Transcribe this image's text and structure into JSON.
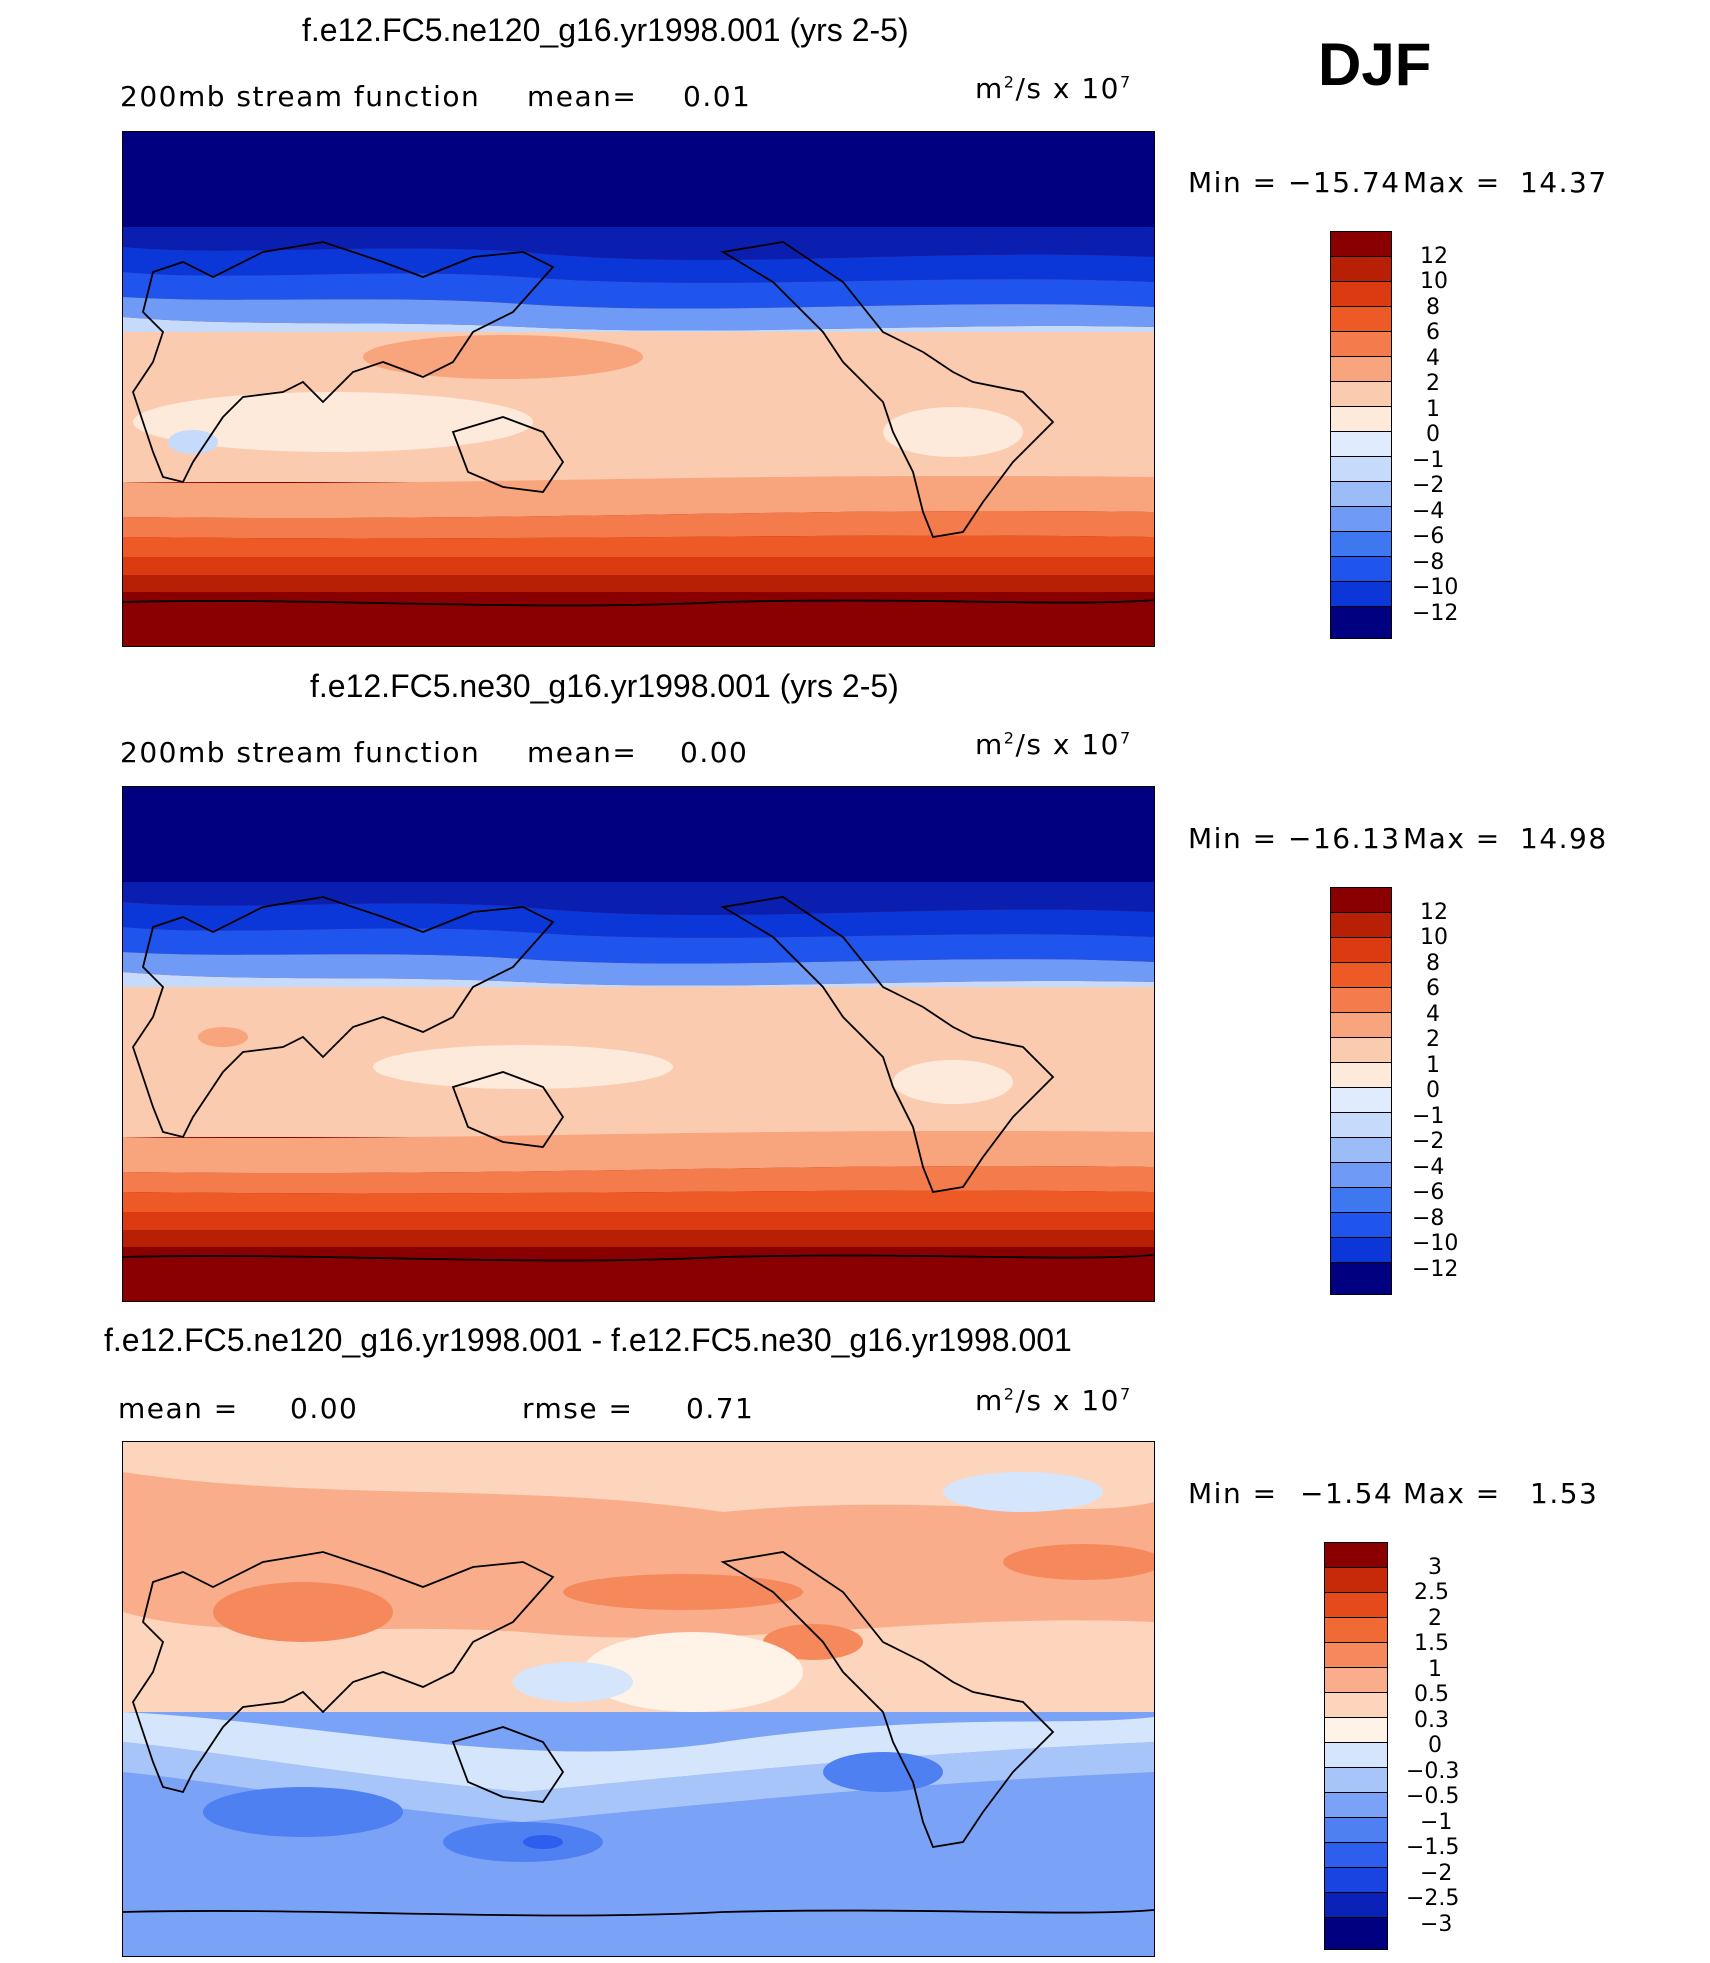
{
  "season": "DJF",
  "colors": {
    "full": [
      "#000080",
      "#0a1fb0",
      "#0c37d8",
      "#1f55ec",
      "#3e78f0",
      "#6f9af6",
      "#9cbcf8",
      "#c6dafb",
      "#e0ecfd",
      "#fdeadb",
      "#fbcbb0",
      "#f8a47c",
      "#f47c4c",
      "#ee5a26",
      "#dc3a10",
      "#b82006",
      "#8a0000"
    ],
    "diff": [
      "#000080",
      "#0a22b8",
      "#1a44e0",
      "#2e5eee",
      "#4f80f2",
      "#7aa3f7",
      "#a8c5fa",
      "#d4e5fc",
      "#fff2e6",
      "#fdd5bd",
      "#f9ad8a",
      "#f5895c",
      "#ef6a35",
      "#e44a1a",
      "#c62a08",
      "#8a0000"
    ]
  },
  "panels": [
    {
      "title": "f.e12.FC5.ne120_g16.yr1998.001 (yrs 2-5)",
      "left_label": "200mb stream function",
      "mean_label": "mean=",
      "mean_value": "0.01",
      "units": {
        "base": "m",
        "sup1": "2",
        "mid": "/s x 10",
        "sup2": "7"
      },
      "minmax": {
        "min_label": "Min =",
        "min_value": "−15.74",
        "max_label": "Max =",
        "max_value": "14.37"
      },
      "levels": [
        "12",
        "10",
        "8",
        "6",
        "4",
        "2",
        "1",
        "0",
        "−1",
        "−2",
        "−4",
        "−6",
        "−8",
        "−10",
        "−12"
      ]
    },
    {
      "title": "f.e12.FC5.ne30_g16.yr1998.001 (yrs 2-5)",
      "left_label": "200mb stream function",
      "mean_label": "mean=",
      "mean_value": "0.00",
      "units": {
        "base": "m",
        "sup1": "2",
        "mid": "/s x 10",
        "sup2": "7"
      },
      "minmax": {
        "min_label": "Min =",
        "min_value": "−16.13",
        "max_label": "Max =",
        "max_value": "14.98"
      },
      "levels": [
        "12",
        "10",
        "8",
        "6",
        "4",
        "2",
        "1",
        "0",
        "−1",
        "−2",
        "−4",
        "−6",
        "−8",
        "−10",
        "−12"
      ]
    },
    {
      "title": "f.e12.FC5.ne120_g16.yr1998.001 - f.e12.FC5.ne30_g16.yr1998.001",
      "mean_label": "mean =",
      "mean_value": "0.00",
      "rmse_label": "rmse =",
      "rmse_value": "0.71",
      "units": {
        "base": "m",
        "sup1": "2",
        "mid": "/s x 10",
        "sup2": "7"
      },
      "minmax": {
        "min_label": "Min =",
        "min_value": "−1.54",
        "max_label": "Max =",
        "max_value": "1.53"
      },
      "levels": [
        "3",
        "2.5",
        "2",
        "1.5",
        "1",
        "0.5",
        "0.3",
        "0",
        "−0.3",
        "−0.5",
        "−1",
        "−1.5",
        "−2",
        "−2.5",
        "−3"
      ]
    }
  ]
}
